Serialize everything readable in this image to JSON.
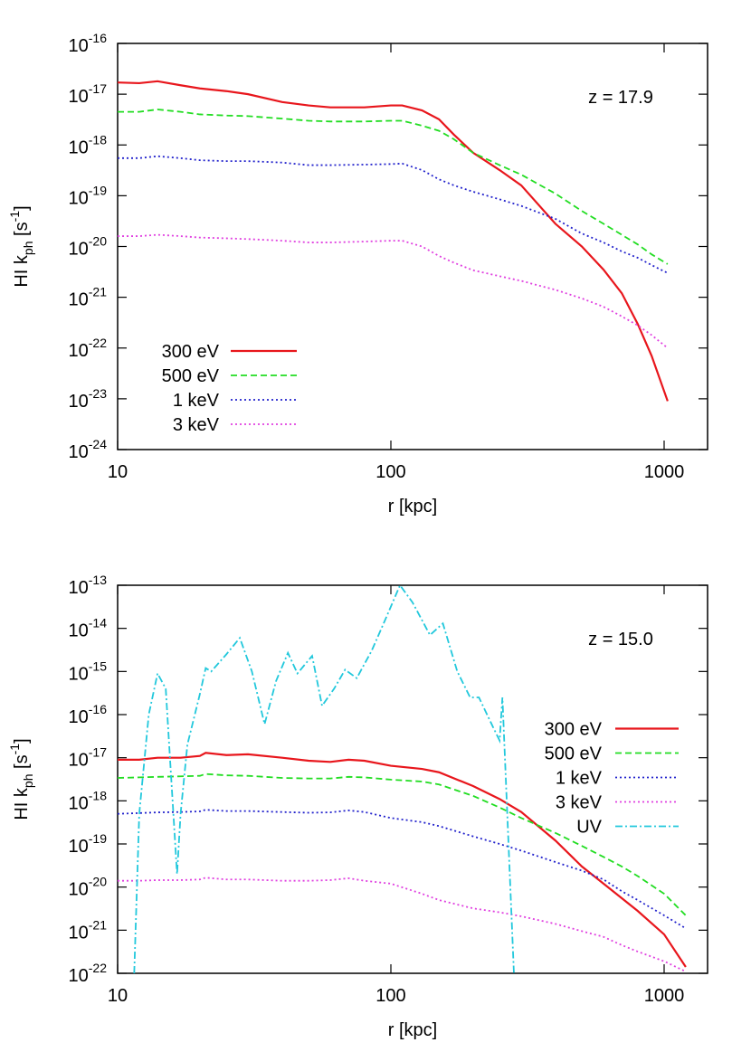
{
  "chart_data": [
    {
      "type": "line",
      "annotation": "z = 17.9",
      "xlabel": "r [kpc]",
      "ylabel": [
        "HI k",
        "ph",
        " [s",
        "-1",
        "]"
      ],
      "log_x": true,
      "log_y": true,
      "legend": "bottom-left",
      "xlim": [
        10,
        1442
      ],
      "ylim": [
        1e-24,
        1e-16
      ],
      "xticks": [
        10,
        100,
        1000
      ],
      "yticks": [
        {
          "value": 1e-16,
          "label": "10",
          "exponent": "-16"
        },
        {
          "value": 1e-17,
          "label": "10",
          "exponent": "-17"
        },
        {
          "value": 1e-18,
          "label": "10",
          "exponent": "-18"
        },
        {
          "value": 1e-19,
          "label": "10",
          "exponent": "-19"
        },
        {
          "value": 1e-20,
          "label": "10",
          "exponent": "-20"
        },
        {
          "value": 1e-21,
          "label": "10",
          "exponent": "-21"
        },
        {
          "value": 1e-22,
          "label": "10",
          "exponent": "-22"
        },
        {
          "value": 1e-23,
          "label": "10",
          "exponent": "-23"
        },
        {
          "value": 1e-24,
          "label": "10",
          "exponent": "-24"
        }
      ],
      "x": [
        10,
        12,
        14,
        17,
        20,
        25,
        30,
        40,
        50,
        60,
        80,
        100,
        110,
        130,
        150,
        170,
        200,
        250,
        300,
        400,
        500,
        600,
        700,
        800,
        900,
        1030
      ],
      "series": [
        {
          "name": "300 eV",
          "color": "#e8161c",
          "dash": "solid",
          "values": [
            1.7e-17,
            1.65e-17,
            1.8e-17,
            1.5e-17,
            1.3e-17,
            1.15e-17,
            1e-17,
            7e-18,
            6e-18,
            5.5e-18,
            5.5e-18,
            6e-18,
            6e-18,
            4.8e-18,
            3.2e-18,
            1.6e-18,
            7e-19,
            3.2e-19,
            1.6e-19,
            2.8e-20,
            1e-20,
            3.5e-21,
            1.2e-21,
            3e-22,
            7e-23,
            9e-24
          ]
        },
        {
          "name": "500 eV",
          "color": "#22dd22",
          "dash": "dashed",
          "values": [
            4.5e-18,
            4.5e-18,
            5e-18,
            4.5e-18,
            4e-18,
            3.8e-18,
            3.7e-18,
            3.3e-18,
            3e-18,
            2.9e-18,
            2.9e-18,
            3e-18,
            3e-18,
            2.4e-18,
            1.9e-18,
            1.3e-18,
            7e-19,
            4e-19,
            2.6e-19,
            1.1e-19,
            5e-20,
            2.8e-20,
            1.7e-20,
            1.1e-20,
            7e-21,
            4.5e-21
          ]
        },
        {
          "name": "1 keV",
          "color": "#2222cc",
          "dash": "dotted",
          "values": [
            5.5e-19,
            5.5e-19,
            6e-19,
            5.5e-19,
            5e-19,
            4.8e-19,
            4.8e-19,
            4.5e-19,
            4e-19,
            4e-19,
            4.1e-19,
            4.2e-19,
            4.3e-19,
            3.2e-19,
            2.1e-19,
            1.6e-19,
            1.2e-19,
            8.5e-20,
            6.3e-20,
            3.5e-20,
            1.8e-20,
            1.2e-20,
            8e-21,
            6e-21,
            4.3e-21,
            3e-21
          ]
        },
        {
          "name": "3 keV",
          "color": "#e040e0",
          "dash": "dotted",
          "values": [
            1.6e-20,
            1.6e-20,
            1.7e-20,
            1.6e-20,
            1.5e-20,
            1.45e-20,
            1.4e-20,
            1.3e-20,
            1.2e-20,
            1.2e-20,
            1.25e-20,
            1.3e-20,
            1.3e-20,
            1e-20,
            6.5e-21,
            4.8e-21,
            3.4e-21,
            2.6e-21,
            2.1e-21,
            1.4e-21,
            9.5e-22,
            6.5e-22,
            4.2e-22,
            2.8e-22,
            1.8e-22,
            1e-22
          ]
        }
      ]
    },
    {
      "type": "line",
      "annotation": "z = 15.0",
      "xlabel": "r [kpc]",
      "ylabel": [
        "HI k",
        "ph",
        " [s",
        "-1",
        "]"
      ],
      "log_x": true,
      "log_y": true,
      "legend": "right",
      "xlim": [
        10,
        1442
      ],
      "ylim": [
        1e-22,
        1e-13
      ],
      "xticks": [
        10,
        100,
        1000
      ],
      "yticks": [
        {
          "value": 1e-13,
          "label": "10",
          "exponent": "-13"
        },
        {
          "value": 1e-14,
          "label": "10",
          "exponent": "-14"
        },
        {
          "value": 1e-15,
          "label": "10",
          "exponent": "-15"
        },
        {
          "value": 1e-16,
          "label": "10",
          "exponent": "-16"
        },
        {
          "value": 1e-17,
          "label": "10",
          "exponent": "-17"
        },
        {
          "value": 1e-18,
          "label": "10",
          "exponent": "-18"
        },
        {
          "value": 1e-19,
          "label": "10",
          "exponent": "-19"
        },
        {
          "value": 1e-20,
          "label": "10",
          "exponent": "-20"
        },
        {
          "value": 1e-21,
          "label": "10",
          "exponent": "-21"
        },
        {
          "value": 1e-22,
          "label": "10",
          "exponent": "-22"
        }
      ],
      "x": [
        10,
        12,
        14,
        17,
        20,
        21,
        25,
        30,
        40,
        50,
        60,
        70,
        80,
        100,
        130,
        150,
        200,
        250,
        300,
        400,
        500,
        600,
        700,
        800,
        1000,
        1200
      ],
      "series": [
        {
          "name": "300 eV",
          "color": "#e8161c",
          "dash": "solid",
          "values": [
            9e-18,
            9e-18,
            1e-17,
            1e-17,
            1.1e-17,
            1.3e-17,
            1.15e-17,
            1.2e-17,
            1e-17,
            8.5e-18,
            8e-18,
            9e-18,
            8.5e-18,
            6.5e-18,
            5.5e-18,
            4.6e-18,
            2.2e-18,
            1.1e-18,
            5.5e-19,
            1.2e-19,
            3e-20,
            1.2e-20,
            5.5e-21,
            2.8e-21,
            8e-22,
            1.4e-22
          ]
        },
        {
          "name": "500 eV",
          "color": "#22dd22",
          "dash": "dashed",
          "values": [
            3.4e-18,
            3.5e-18,
            3.6e-18,
            3.7e-18,
            3.8e-18,
            4.2e-18,
            3.9e-18,
            3.8e-18,
            3.4e-18,
            3.3e-18,
            3.3e-18,
            3.6e-18,
            3.5e-18,
            3.1e-18,
            2.8e-18,
            2.4e-18,
            1.3e-18,
            7e-19,
            4e-19,
            1.8e-19,
            9e-20,
            5e-20,
            3e-20,
            1.8e-20,
            7e-21,
            2.2e-21
          ]
        },
        {
          "name": "1 keV",
          "color": "#2222cc",
          "dash": "dotted",
          "values": [
            5e-19,
            5.2e-19,
            5.4e-19,
            5.5e-19,
            5.7e-19,
            6.2e-19,
            5.8e-19,
            5.8e-19,
            5.5e-19,
            5.3e-19,
            5.4e-19,
            6e-19,
            5.5e-19,
            4e-19,
            3.2e-19,
            2.6e-19,
            1.5e-19,
            1e-19,
            7e-20,
            3.8e-20,
            2.4e-20,
            1.5e-20,
            8e-21,
            5e-21,
            2.2e-21,
            1.1e-21
          ]
        },
        {
          "name": "3 keV",
          "color": "#e040e0",
          "dash": "dotted",
          "values": [
            1.4e-20,
            1.4e-20,
            1.45e-20,
            1.45e-20,
            1.5e-20,
            1.65e-20,
            1.5e-20,
            1.5e-20,
            1.4e-20,
            1.4e-20,
            1.45e-20,
            1.6e-20,
            1.4e-20,
            1.2e-20,
            7e-21,
            5e-21,
            3.2e-21,
            2.6e-21,
            2.1e-21,
            1.4e-21,
            9.5e-22,
            7e-22,
            4.5e-22,
            3.2e-22,
            1.9e-22,
            1.1e-22
          ]
        },
        {
          "name": "UV",
          "color": "#22c8dc",
          "dash": "dashdot",
          "x": [
            11.5,
            12,
            13,
            14,
            15,
            16.5,
            17,
            18,
            20,
            21,
            22,
            25,
            28,
            31,
            34.5,
            38,
            42,
            45.5,
            51.5,
            56,
            62,
            68,
            75,
            85,
            95,
            108,
            120,
            139,
            155,
            175,
            195,
            210,
            237,
            250,
            256,
            282
          ],
          "values": [
            1e-22,
            5e-19,
            1e-16,
            9e-16,
            4e-16,
            2e-20,
            5e-19,
            2e-17,
            3e-16,
            1.2e-15,
            1e-15,
            2.5e-15,
            6e-15,
            1e-15,
            6e-17,
            6e-16,
            2.7e-15,
            9e-16,
            2.3e-15,
            1.6e-16,
            4e-16,
            1.1e-15,
            7e-16,
            3e-15,
            1.5e-14,
            1e-13,
            4e-14,
            7e-15,
            1.3e-14,
            1e-15,
            2.5e-16,
            2.5e-16,
            5e-17,
            2.5e-17,
            2.5e-16,
            1e-22
          ]
        }
      ]
    }
  ]
}
